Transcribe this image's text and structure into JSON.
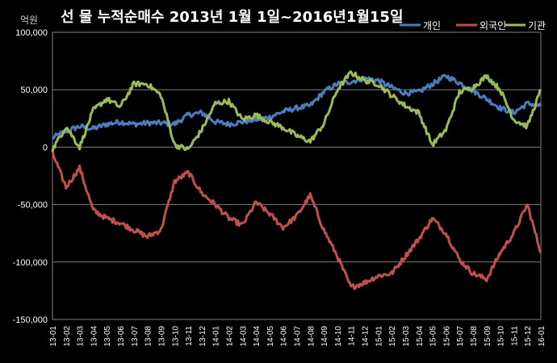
{
  "chart_data": {
    "type": "line",
    "title": "선 물 누적순매수 2013년 1월 1일~2016년1월15일",
    "unit_label": "억원",
    "ylim": [
      -150000,
      100000
    ],
    "y_ticks": [
      100000,
      50000,
      0,
      -50000,
      -100000,
      -150000
    ],
    "y_tick_labels": [
      "100,000",
      "50,000",
      "0",
      "-50,000",
      "-100,000",
      "-150,000"
    ],
    "x_tick_labels": [
      "13-01",
      "13-02",
      "13-03",
      "13-04",
      "13-05",
      "13-06",
      "13-07",
      "13-08",
      "13-09",
      "13-10",
      "13-11",
      "13-12",
      "14-01",
      "14-02",
      "14-03",
      "14-04",
      "14-05",
      "14-06",
      "14-07",
      "14-08",
      "14-09",
      "14-10",
      "14-11",
      "14-12",
      "15-01",
      "15-02",
      "15-03",
      "15-04",
      "15-05",
      "15-06",
      "15-07",
      "15-08",
      "15-09",
      "15-10",
      "15-11",
      "15-12",
      "16-01"
    ],
    "grid": "horizontal",
    "legend_position": "top-right",
    "series": [
      {
        "name": "개인",
        "color": "#4a7ebf",
        "values": [
          8000,
          14000,
          18000,
          16000,
          20000,
          22000,
          20000,
          21000,
          21000,
          20000,
          28000,
          30000,
          22000,
          20000,
          22000,
          24000,
          26000,
          31000,
          34000,
          36000,
          48000,
          55000,
          57000,
          60000,
          58000,
          52000,
          47000,
          48000,
          55000,
          62000,
          56000,
          49000,
          42000,
          34000,
          30000,
          38000,
          36000
        ]
      },
      {
        "name": "외국인",
        "color": "#c0504d",
        "values": [
          -5000,
          -35000,
          -18000,
          -55000,
          -62000,
          -66000,
          -72000,
          -78000,
          -72000,
          -30000,
          -22000,
          -40000,
          -50000,
          -62000,
          -68000,
          -48000,
          -58000,
          -70000,
          -60000,
          -42000,
          -72000,
          -95000,
          -122000,
          -118000,
          -112000,
          -110000,
          -95000,
          -80000,
          -62000,
          -75000,
          -98000,
          -110000,
          -115000,
          -92000,
          -75000,
          -50000,
          -92000
        ]
      },
      {
        "name": "기관",
        "color": "#9bbb59",
        "values": [
          -2000,
          18000,
          0,
          32000,
          42000,
          35000,
          55000,
          55000,
          45000,
          2000,
          -2000,
          15000,
          38000,
          40000,
          24000,
          28000,
          22000,
          17000,
          10000,
          5000,
          20000,
          50000,
          65000,
          58000,
          55000,
          45000,
          36000,
          30000,
          2000,
          15000,
          48000,
          52000,
          62000,
          50000,
          24000,
          18000,
          50000
        ]
      }
    ]
  }
}
